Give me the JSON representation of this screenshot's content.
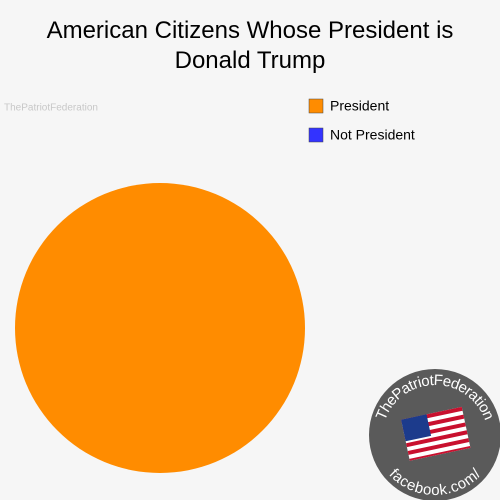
{
  "chart_data": {
    "type": "pie",
    "title": "American Citizens Whose President is Donald Trump",
    "categories": [
      "President",
      "Not President"
    ],
    "values": [
      100,
      0
    ],
    "colors": [
      "#ff8c00",
      "#3333ff"
    ],
    "legend": "top-right"
  },
  "watermark": "ThePatriotFederation",
  "badge": {
    "top": "ThePatriotFederation",
    "bottom": "facebook.com/"
  }
}
